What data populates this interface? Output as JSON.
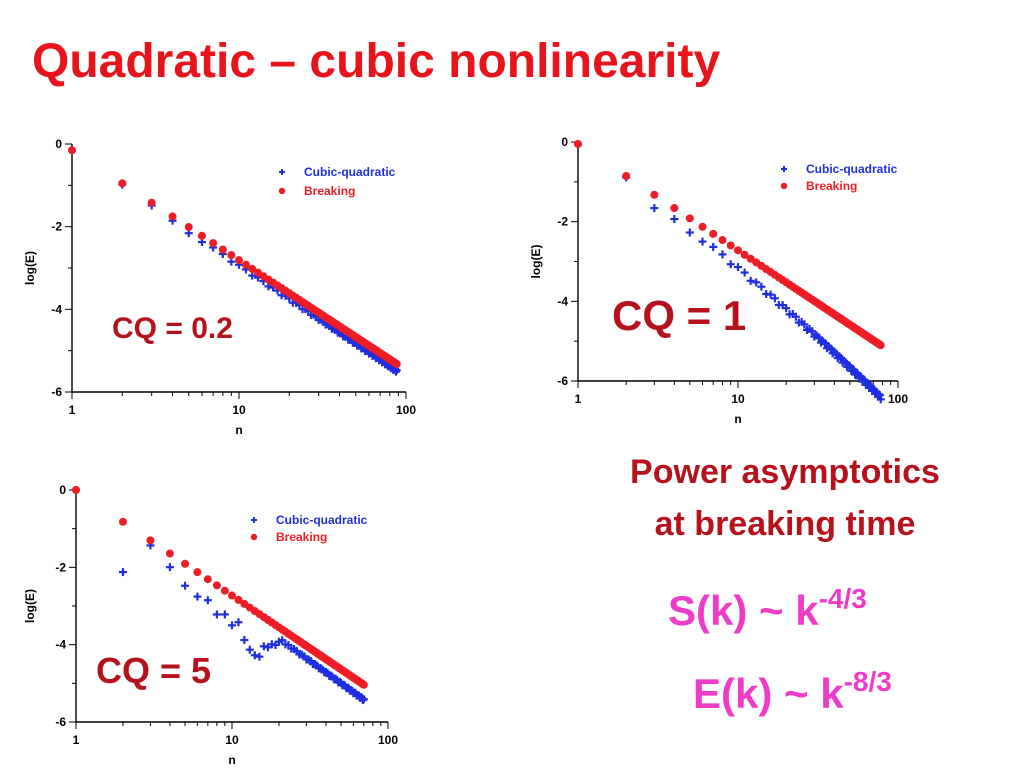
{
  "slide": {
    "title": "Quadratic – cubic nonlinearity",
    "asymptotics_title_line1": "Power asymptotics",
    "asymptotics_title_line2": "at breaking time",
    "formula_s_base": "S(k) ~ k",
    "formula_s_exp": "-4/3",
    "formula_e_base": "E(k) ~ k",
    "formula_e_exp": "-8/3"
  },
  "colors": {
    "title": "#e8141c",
    "cq_label": "#b5121b",
    "formula": "#ee3bc8",
    "cubic_quadratic": "#1f2ee0",
    "breaking": "#ee1c24"
  },
  "chart_data": [
    {
      "type": "scatter",
      "annotation": "CQ = 0.2",
      "xlabel": "n",
      "ylabel": "log(E)",
      "xscale": "log",
      "xlim": [
        1,
        100
      ],
      "ylim": [
        -6,
        0
      ],
      "xticks": [
        "1",
        "10",
        "100"
      ],
      "yticks": [
        "0",
        "-2",
        "-4",
        "-6"
      ],
      "legend_position": "top-right",
      "legend": [
        "Cubic-quadratic",
        "Breaking"
      ],
      "n_max": 88,
      "series": [
        {
          "name": "Cubic-quadratic",
          "marker": "plus",
          "intercept": -0.15,
          "slope": -2.7,
          "curve": 0.0,
          "osc": [
            0,
            0.02,
            0.05,
            0.08,
            0.12,
            0.12
          ]
        },
        {
          "name": "Breaking",
          "marker": "dot",
          "intercept": -0.15,
          "slope": -2.66,
          "curve": 0.0,
          "osc": []
        }
      ]
    },
    {
      "type": "scatter",
      "annotation": "CQ = 1",
      "xlabel": "n",
      "ylabel": "log(E)",
      "xscale": "log",
      "xlim": [
        1,
        100
      ],
      "ylim": [
        -6,
        0
      ],
      "xticks": [
        "1",
        "10",
        "100"
      ],
      "yticks": [
        "0",
        "-2",
        "-4",
        "-6"
      ],
      "legend_position": "top-right",
      "legend": [
        "Cubic-quadratic",
        "Breaking"
      ],
      "n_max": 78,
      "series": [
        {
          "name": "Cubic-quadratic",
          "marker": "plus",
          "intercept": -0.05,
          "slope": -2.62,
          "curve": -0.35,
          "osc": [
            0,
            0.02,
            0.28,
            0.18,
            0.22,
            0.2
          ]
        },
        {
          "name": "Breaking",
          "marker": "dot",
          "intercept": -0.05,
          "slope": -2.67,
          "curve": 0.0,
          "osc": []
        }
      ]
    },
    {
      "type": "scatter",
      "annotation": "CQ = 5",
      "xlabel": "n",
      "ylabel": "log(E)",
      "xscale": "log",
      "xlim": [
        1,
        100
      ],
      "ylim": [
        -6,
        0
      ],
      "xticks": [
        "1",
        "10",
        "100"
      ],
      "yticks": [
        "0",
        "-2",
        "-4",
        "-6"
      ],
      "legend_position": "top-right",
      "legend": [
        "Cubic-quadratic",
        "Breaking"
      ],
      "n_max": 70,
      "series": [
        {
          "name": "Cubic-quadratic",
          "marker": "plus",
          "intercept": 0.0,
          "slope": -2.9,
          "curve": 0.0,
          "osc": [
            0,
            1.25,
            0.05,
            0.25,
            0.45,
            0.5,
            0.4,
            0.6,
            0.45,
            0.6,
            0.4,
            0.75,
            0.9,
            0.95,
            0.9,
            0.55,
            0.5,
            0.35,
            0.3,
            0.15,
            0.05,
            0.1
          ]
        },
        {
          "name": "Breaking",
          "marker": "dot",
          "intercept": 0.0,
          "slope": -2.73,
          "curve": 0.0,
          "osc": []
        }
      ]
    }
  ]
}
